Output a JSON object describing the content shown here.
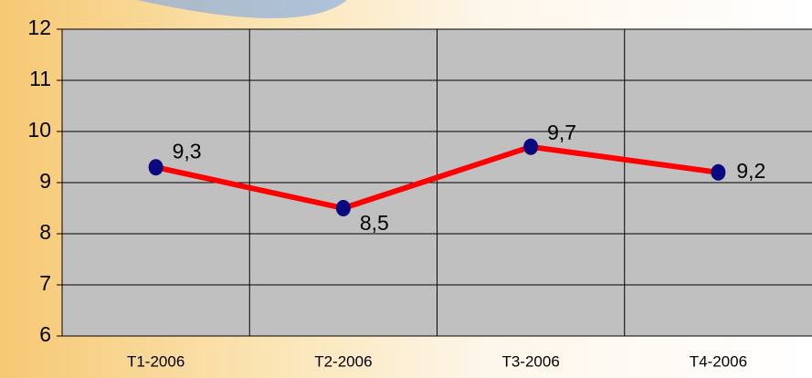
{
  "chart_data": {
    "type": "line",
    "categories": [
      "T1-2006",
      "T2-2006",
      "T3-2006",
      "T4-2006"
    ],
    "series": [
      {
        "color": "#ff0000",
        "marker_color": "#0a0a80",
        "values": [
          9.3,
          8.5,
          9.7,
          9.2
        ],
        "value_labels": [
          "9,3",
          "8,5",
          "9,7",
          "9,2"
        ]
      }
    ],
    "ylim": [
      6,
      12
    ],
    "yticks": [
      6,
      7,
      8,
      9,
      10,
      11,
      12
    ],
    "grid": true
  }
}
